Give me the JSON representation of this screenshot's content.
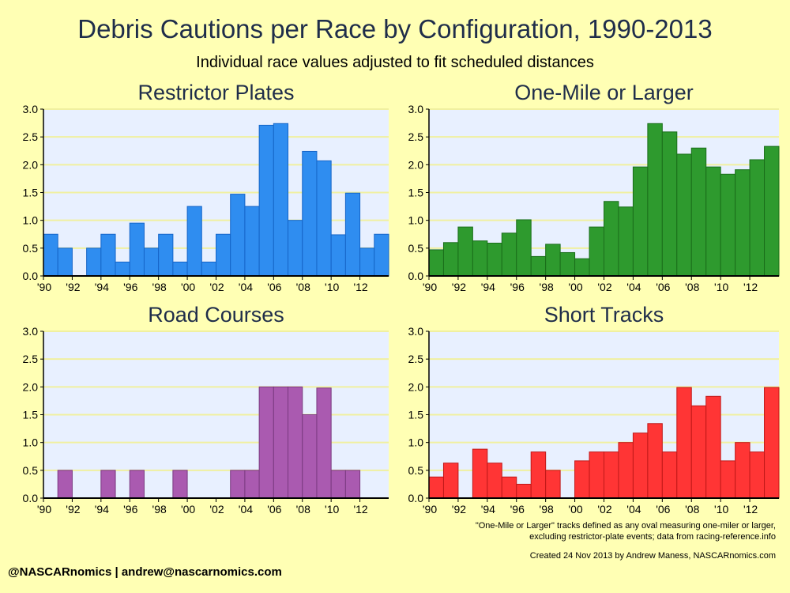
{
  "title": "Debris Cautions per Race by Configuration, 1990-2013",
  "subtitle": "Individual race values adjusted to fit scheduled distances",
  "footnote_1": "\"One-Mile or Larger\" tracks defined as any oval measuring one-miler or larger,",
  "footnote_2": "excluding restrictor-plate events; data from racing-reference.info",
  "credit": "Created 24 Nov 2013 by Andrew Maness, NASCARnomics.com",
  "contact": "@NASCARnomics | andrew@nascarnomics.com",
  "colors": {
    "background": "#ffffb4",
    "plot_background": "#e8f0ff",
    "gridline": "#f0f0a0"
  },
  "chart_data": [
    {
      "type": "bar",
      "title": "Restrictor Plates",
      "color": "#2f8df0",
      "edge": "#1565c8",
      "years": [
        1990,
        1991,
        1992,
        1993,
        1994,
        1995,
        1996,
        1997,
        1998,
        1999,
        2000,
        2001,
        2002,
        2003,
        2004,
        2005,
        2006,
        2007,
        2008,
        2009,
        2010,
        2011,
        2012,
        2013
      ],
      "values": [
        0.75,
        0.5,
        0,
        0.5,
        0.75,
        0.25,
        0.95,
        0.5,
        0.75,
        0.25,
        1.25,
        0.25,
        0.75,
        1.47,
        1.25,
        2.71,
        2.74,
        1.0,
        2.24,
        2.07,
        0.74,
        1.49,
        0.5,
        0.75
      ],
      "ylim": [
        0,
        3
      ],
      "yticks": [
        "0.0",
        "0.5",
        "1.0",
        "1.5",
        "2.0",
        "2.5",
        "3.0"
      ],
      "xticks": [
        "'90",
        "'92",
        "'94",
        "'96",
        "'98",
        "'00",
        "'02",
        "'04",
        "'06",
        "'08",
        "'10",
        "'12"
      ],
      "grid": true
    },
    {
      "type": "bar",
      "title": "One-Mile or Larger",
      "color": "#2e9a2e",
      "edge": "#1a6e1a",
      "years": [
        1990,
        1991,
        1992,
        1993,
        1994,
        1995,
        1996,
        1997,
        1998,
        1999,
        2000,
        2001,
        2002,
        2003,
        2004,
        2005,
        2006,
        2007,
        2008,
        2009,
        2010,
        2011,
        2012,
        2013
      ],
      "values": [
        0.47,
        0.6,
        0.88,
        0.63,
        0.59,
        0.77,
        1.01,
        0.35,
        0.57,
        0.42,
        0.31,
        0.88,
        1.34,
        1.24,
        1.96,
        2.74,
        2.59,
        2.19,
        2.3,
        1.96,
        1.83,
        1.91,
        2.09,
        2.33
      ],
      "ylim": [
        0,
        3
      ],
      "yticks": [
        "0.0",
        "0.5",
        "1.0",
        "1.5",
        "2.0",
        "2.5",
        "3.0"
      ],
      "xticks": [
        "'90",
        "'92",
        "'94",
        "'96",
        "'98",
        "'00",
        "'02",
        "'04",
        "'06",
        "'08",
        "'10",
        "'12"
      ],
      "grid": true
    },
    {
      "type": "bar",
      "title": "Road Courses",
      "color": "#aa5ab0",
      "edge": "#7a3a80",
      "years": [
        1990,
        1991,
        1992,
        1993,
        1994,
        1995,
        1996,
        1997,
        1998,
        1999,
        2000,
        2001,
        2002,
        2003,
        2004,
        2005,
        2006,
        2007,
        2008,
        2009,
        2010,
        2011,
        2012,
        2013
      ],
      "values": [
        0,
        0.5,
        0,
        0,
        0.5,
        0,
        0.5,
        0,
        0,
        0.5,
        0,
        0,
        0,
        0.5,
        0.5,
        2.0,
        2.0,
        2.0,
        1.5,
        1.98,
        0.5,
        0.5,
        0,
        0
      ],
      "ylim": [
        0,
        3
      ],
      "yticks": [
        "0.0",
        "0.5",
        "1.0",
        "1.5",
        "2.0",
        "2.5",
        "3.0"
      ],
      "xticks": [
        "'90",
        "'92",
        "'94",
        "'96",
        "'98",
        "'00",
        "'02",
        "'04",
        "'06",
        "'08",
        "'10",
        "'12"
      ],
      "grid": true
    },
    {
      "type": "bar",
      "title": "Short Tracks",
      "color": "#ff3535",
      "edge": "#c01818",
      "years": [
        1990,
        1991,
        1992,
        1993,
        1994,
        1995,
        1996,
        1997,
        1998,
        1999,
        2000,
        2001,
        2002,
        2003,
        2004,
        2005,
        2006,
        2007,
        2008,
        2009,
        2010,
        2011,
        2012,
        2013
      ],
      "values": [
        0.38,
        0.63,
        0,
        0.88,
        0.63,
        0.38,
        0.25,
        0.83,
        0.5,
        0,
        0.67,
        0.83,
        0.83,
        1.0,
        1.17,
        1.34,
        0.83,
        1.99,
        1.66,
        1.83,
        0.67,
        1.0,
        0.83,
        1.99
      ],
      "ylim": [
        0,
        3
      ],
      "yticks": [
        "0.0",
        "0.5",
        "1.0",
        "1.5",
        "2.0",
        "2.5",
        "3.0"
      ],
      "xticks": [
        "'90",
        "'92",
        "'94",
        "'96",
        "'98",
        "'00",
        "'02",
        "'04",
        "'06",
        "'08",
        "'10",
        "'12"
      ],
      "grid": true
    }
  ]
}
